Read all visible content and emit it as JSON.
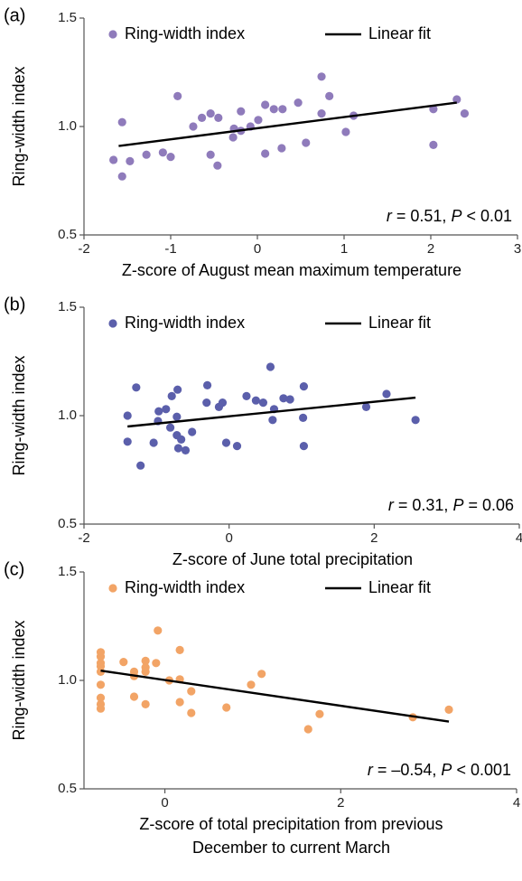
{
  "chart_data": [
    {
      "type": "scatter",
      "panel_label": "(a)",
      "xlabel": "Z-score of August mean maximum temperature",
      "ylabel": "Ring-width index",
      "xlim": [
        -2,
        3
      ],
      "xticks": [
        -2,
        -1,
        0,
        1,
        2,
        3
      ],
      "ylim": [
        0.5,
        1.5
      ],
      "yticks": [
        0.5,
        {
          "value": 1,
          "label": "1.0"
        },
        1.5
      ],
      "series": [
        {
          "name": "Ring-width index",
          "color": "#8f7bbb",
          "x": [
            -1.66,
            -1.56,
            -1.56,
            -1.47,
            -1.28,
            -1.09,
            -1.0,
            -0.92,
            -0.74,
            -0.64,
            -0.54,
            -0.54,
            -0.46,
            -0.45,
            -0.28,
            -0.27,
            -0.19,
            -0.19,
            -0.08,
            0.01,
            0.09,
            0.09,
            0.19,
            0.29,
            0.28,
            0.47,
            0.56,
            0.74,
            0.74,
            0.83,
            1.02,
            1.11,
            2.03,
            2.03,
            2.3,
            2.39
          ],
          "values": [
            0.846,
            0.77,
            1.02,
            0.84,
            0.87,
            0.88,
            0.86,
            1.14,
            1.0,
            1.04,
            1.06,
            0.87,
            0.82,
            1.04,
            0.95,
            0.99,
            1.07,
            0.98,
            1.0,
            1.03,
            0.875,
            1.1,
            1.08,
            1.08,
            0.9,
            1.11,
            0.925,
            1.23,
            1.06,
            1.14,
            0.975,
            1.05,
            0.915,
            1.08,
            1.125,
            1.06
          ]
        }
      ],
      "fit": {
        "name": "Linear fit",
        "color": "#000000",
        "x": [
          -1.6,
          2.3
        ],
        "values": [
          0.91,
          1.11
        ]
      },
      "annotation": [
        {
          "text": "r",
          "italic": true
        },
        {
          "text": " = 0.51, "
        },
        {
          "text": "P",
          "italic": true
        },
        {
          "text": " < 0.01"
        }
      ]
    },
    {
      "type": "scatter",
      "panel_label": "(b)",
      "xlabel": "Z-score of June total precipitation",
      "ylabel": "Ring-width index",
      "xlim": [
        -2,
        4
      ],
      "xticks": [
        -2,
        0,
        2,
        4
      ],
      "ylim": [
        0.5,
        1.5
      ],
      "yticks": [
        0.5,
        {
          "value": 1,
          "label": "1.0"
        },
        1.5
      ],
      "series": [
        {
          "name": "Ring-width index",
          "color": "#5b5fab",
          "x": [
            -1.4,
            -1.4,
            -1.28,
            -1.22,
            -1.04,
            -0.98,
            -0.97,
            -0.87,
            -0.81,
            -0.79,
            -0.72,
            -0.72,
            -0.71,
            -0.7,
            -0.66,
            -0.6,
            -0.51,
            -0.31,
            -0.3,
            -0.14,
            -0.09,
            -0.04,
            0.11,
            0.24,
            0.37,
            0.47,
            0.57,
            0.6,
            0.62,
            0.75,
            0.84,
            1.02,
            1.03,
            1.03,
            1.89,
            2.17,
            2.57
          ],
          "values": [
            0.88,
            1.0,
            1.13,
            0.77,
            0.875,
            0.975,
            1.02,
            1.03,
            0.945,
            1.09,
            0.995,
            0.91,
            1.12,
            0.85,
            0.89,
            0.84,
            0.925,
            1.06,
            1.14,
            1.04,
            1.06,
            0.875,
            0.86,
            1.09,
            1.07,
            1.06,
            1.225,
            0.98,
            1.03,
            1.08,
            1.075,
            0.99,
            1.135,
            0.86,
            1.04,
            1.1,
            0.98
          ]
        }
      ],
      "fit": {
        "name": "Linear fit",
        "color": "#000000",
        "x": [
          -1.4,
          2.57
        ],
        "values": [
          0.95,
          1.083
        ]
      },
      "annotation": [
        {
          "text": "r",
          "italic": true
        },
        {
          "text": " = 0.31, "
        },
        {
          "text": "P",
          "italic": true
        },
        {
          "text": " = 0.06"
        }
      ]
    },
    {
      "type": "scatter",
      "panel_label": "(c)",
      "xlabel": [
        "Z-score of total precipitation from previous",
        "December to current March"
      ],
      "ylabel": "Ring-width index",
      "xlim": [
        -0.92,
        4
      ],
      "xticks": [
        0,
        2,
        4
      ],
      "ylim": [
        0.5,
        1.5
      ],
      "yticks": [
        0.5,
        {
          "value": 1,
          "label": "1.0"
        },
        1.5
      ],
      "series": [
        {
          "name": "Ring-width index",
          "color": "#f2a466",
          "x": [
            -0.73,
            -0.73,
            -0.73,
            -0.73,
            -0.73,
            -0.73,
            -0.73,
            -0.73,
            -0.73,
            -0.47,
            -0.35,
            -0.35,
            -0.35,
            -0.22,
            -0.22,
            -0.22,
            -0.22,
            -0.1,
            -0.08,
            0.05,
            0.17,
            0.17,
            0.17,
            0.3,
            0.3,
            0.7,
            0.98,
            1.1,
            1.63,
            1.76,
            2.82,
            3.23
          ],
          "values": [
            1.13,
            1.11,
            1.08,
            1.065,
            1.04,
            0.98,
            0.92,
            0.89,
            0.87,
            1.085,
            1.04,
            1.02,
            0.925,
            1.09,
            1.06,
            1.04,
            0.89,
            1.08,
            1.23,
            1.0,
            1.14,
            1.005,
            0.9,
            0.95,
            0.85,
            0.875,
            0.98,
            1.03,
            0.775,
            0.845,
            0.83,
            0.865
          ]
        }
      ],
      "fit": {
        "name": "Linear fit",
        "color": "#000000",
        "x": [
          -0.73,
          3.23
        ],
        "values": [
          1.045,
          0.81
        ]
      },
      "annotation": [
        {
          "text": "r",
          "italic": true
        },
        {
          "text": " = –0.54, "
        },
        {
          "text": "P",
          "italic": true
        },
        {
          "text": " < 0.001"
        }
      ]
    }
  ]
}
